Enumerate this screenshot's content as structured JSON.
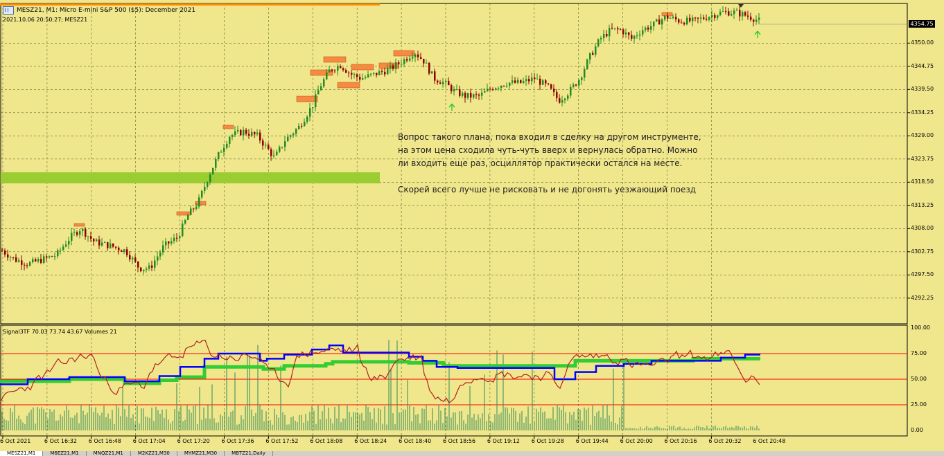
{
  "window": {
    "title": "MESZ21, M1:  Micro E-mini S&P 500 ($5): December 2021",
    "server_time": "2021.10.06 20:50:27; MESZ21"
  },
  "price_axis": {
    "labels": [
      "4350.00",
      "4344.75",
      "4339.50",
      "4334.25",
      "4329.00",
      "4323.75",
      "4318.50",
      "4313.25",
      "4308.00",
      "4302.75",
      "4297.50",
      "4292.25"
    ],
    "current": "4354.75"
  },
  "indicator": {
    "label": "Signal3TF 70.03 73.74 43.67 Volumes 21",
    "levels": [
      "100.00",
      "75.00",
      "50.00",
      "25.00",
      "0.00"
    ]
  },
  "time_axis": [
    "6 Oct 2021",
    "6 Oct 16:32",
    "6 Oct 16:48",
    "6 Oct 17:04",
    "6 Oct 17:20",
    "6 Oct 17:36",
    "6 Oct 17:52",
    "6 Oct 18:08",
    "6 Oct 18:24",
    "6 Oct 18:40",
    "6 Oct 18:56",
    "6 Oct 19:12",
    "6 Oct 19:28",
    "6 Oct 19:44",
    "6 Oct 20:00",
    "6 Oct 20:16",
    "6 Oct 20:32",
    "6 Oct 20:48"
  ],
  "note": {
    "paragraph1": "Вопрос такого плана, пока входил в сделку на другом инструменте, на этом цена сходила чуть-чуть вверх и вернулась обратно. Можно ли входить еще раз, осциллятор практически остался на месте.",
    "paragraph2": "Скорей всего лучше не рисковать и не догонять уезжающий поезд"
  },
  "tabs": [
    "MESZ21,M1",
    "M6EZ21,M1",
    "MNQZ21,M1",
    "M2KZ21,M30",
    "MYMZ21,M30",
    "MBTZ21,Daily"
  ],
  "colors": {
    "background": "#f0e68c",
    "grid": "#556b2f",
    "bull": "#228b22",
    "bear": "#8b0000",
    "zone_supply": "#f58a40",
    "zone_green": "#9acd32",
    "ind_blue": "#0000ff",
    "ind_green": "#32cd32",
    "ind_red": "#b22222",
    "level_line": "#ff0000"
  }
}
